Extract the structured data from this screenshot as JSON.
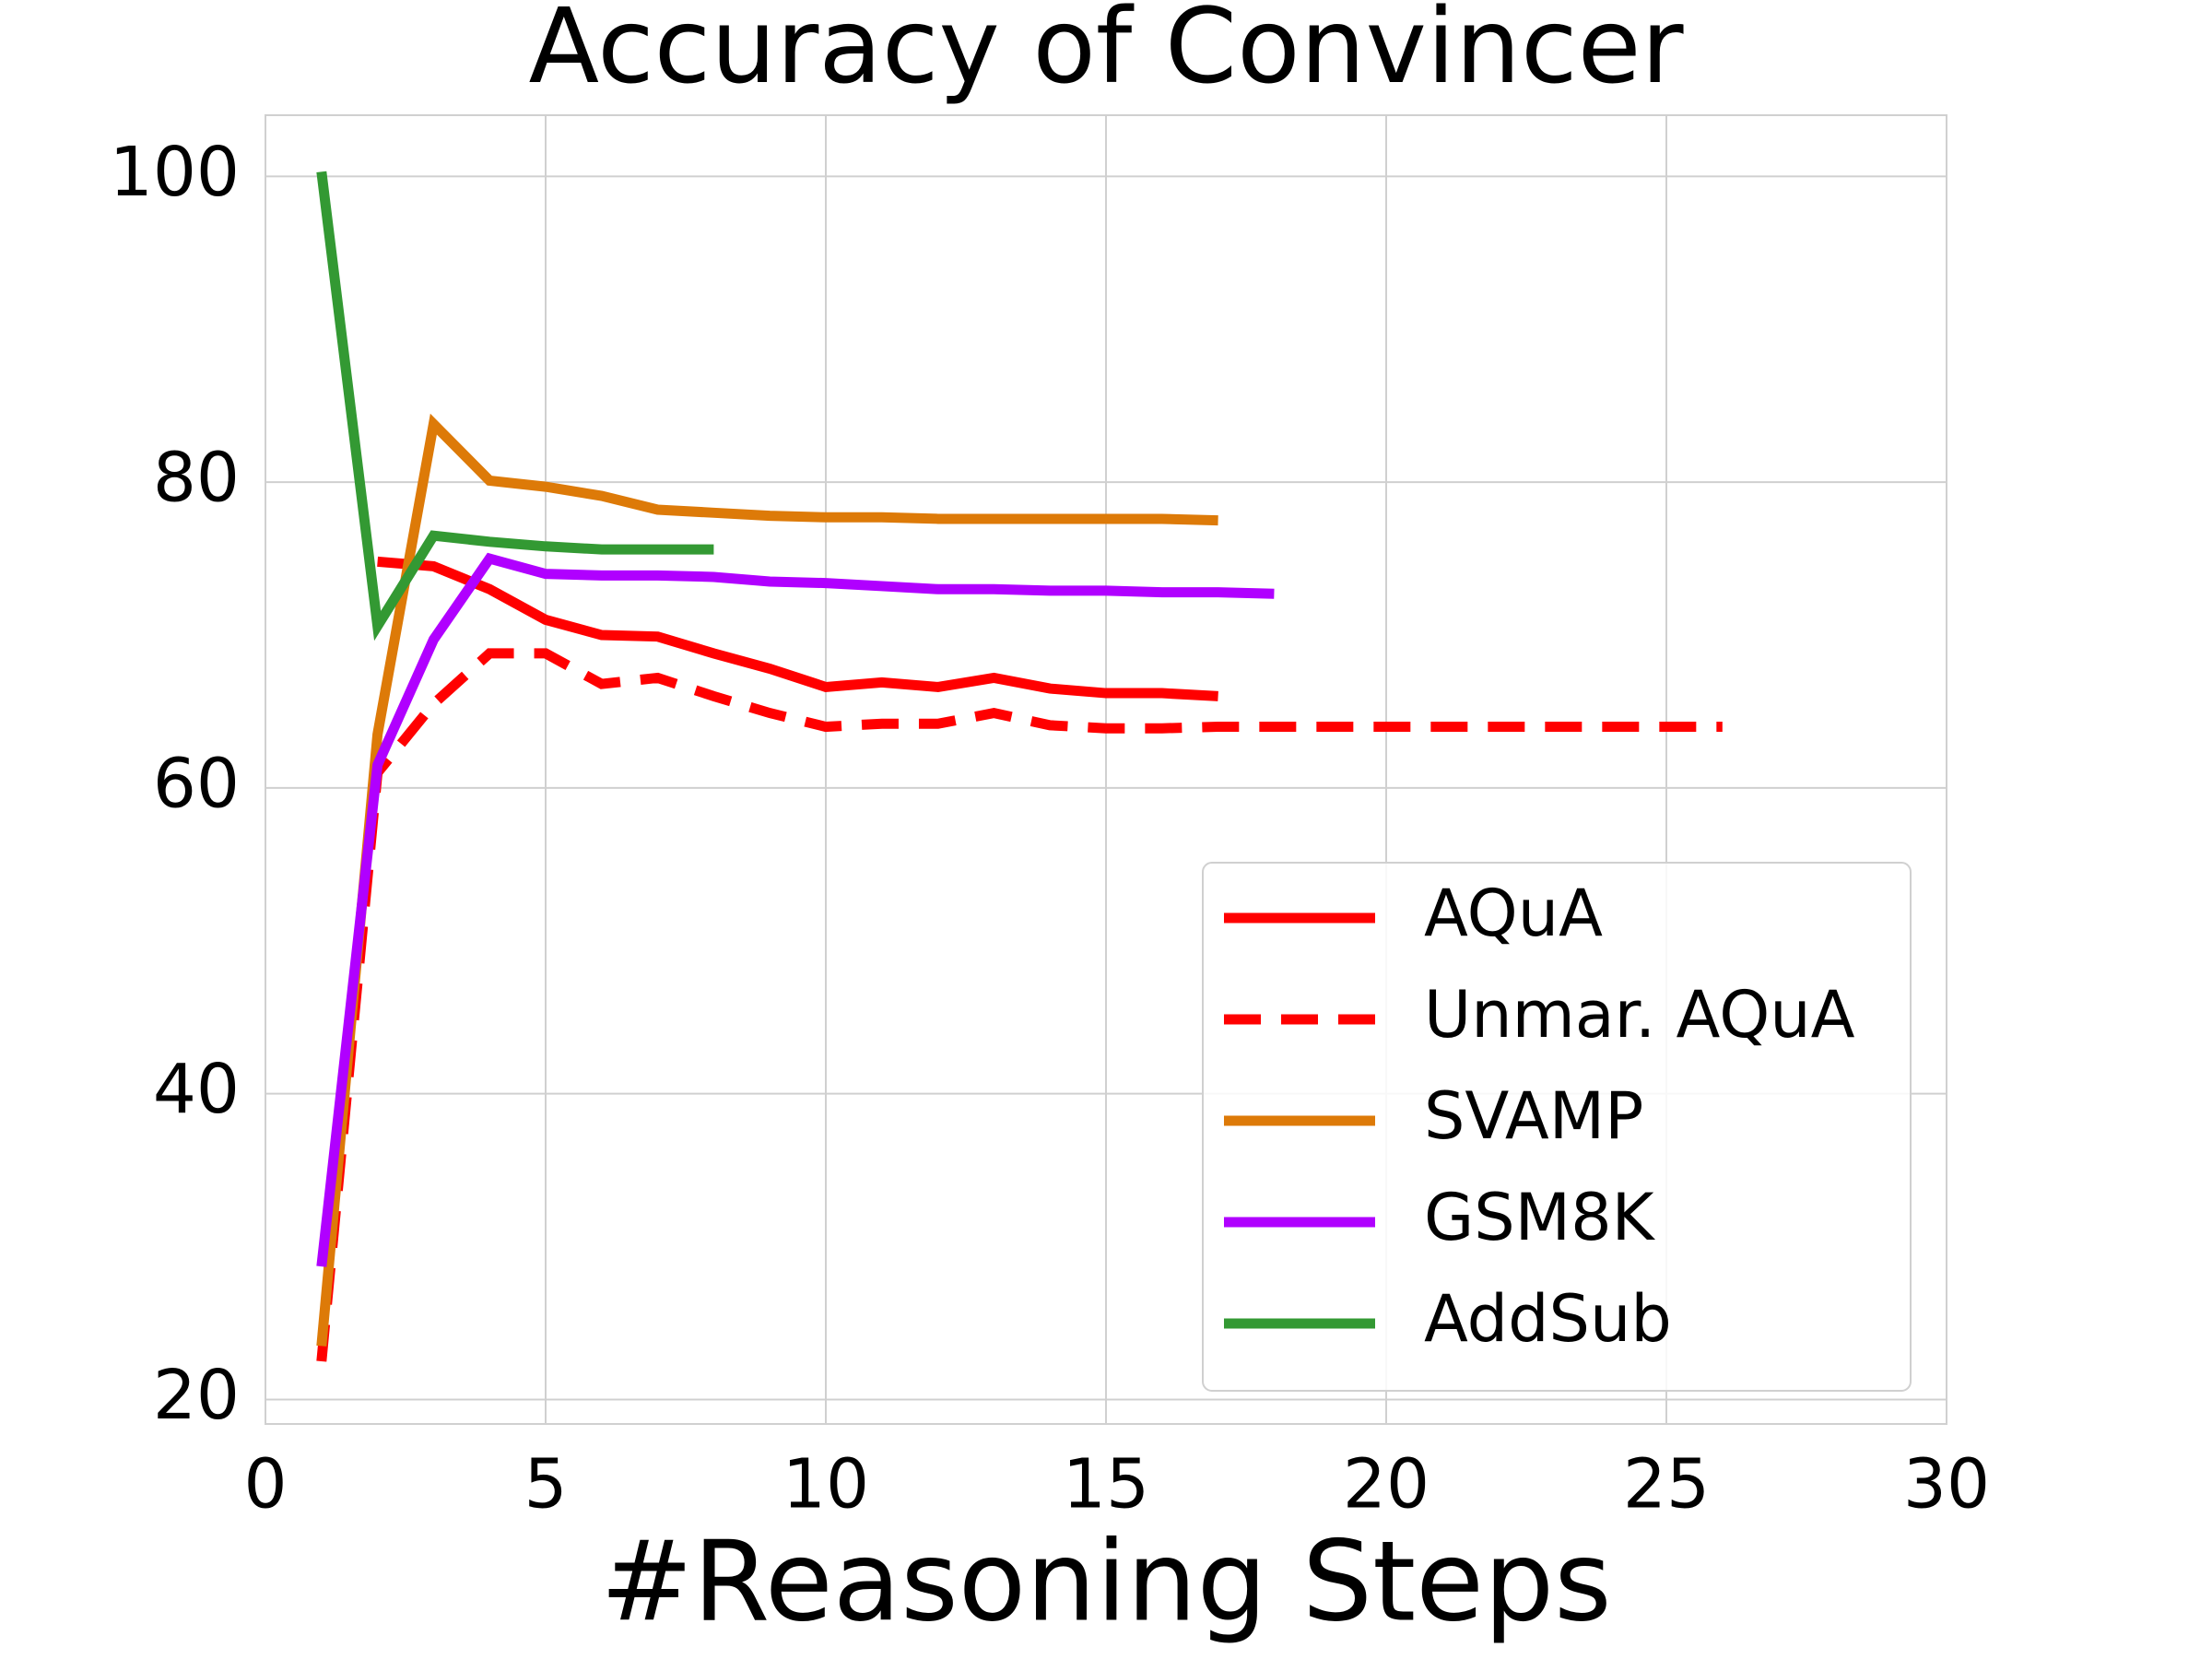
{
  "chart_data": {
    "type": "line",
    "title": "Accuracy of Convincer",
    "x_label": "#Reasoning Steps",
    "xlim": [
      0,
      30
    ],
    "ylim": [
      18.4,
      104
    ],
    "xticks": [
      0,
      5,
      10,
      15,
      20,
      25,
      30
    ],
    "yticks": [
      20,
      40,
      60,
      80,
      100
    ],
    "grid": true,
    "legend": "lower right",
    "series": [
      {
        "name": "AQuA",
        "color": "#ff0000",
        "style": "solid",
        "x": [
          2,
          3,
          4,
          5,
          6,
          7,
          8,
          9,
          10,
          11,
          12,
          13,
          14,
          15,
          16,
          17
        ],
        "values": [
          74.8,
          74.5,
          73,
          71,
          70,
          69.9,
          68.8,
          67.8,
          66.6,
          66.9,
          66.6,
          67.2,
          66.5,
          66.2,
          66.2,
          66.0
        ]
      },
      {
        "name": "Unmar. AQuA",
        "color": "#ff0000",
        "style": "dashed",
        "x": [
          1,
          2,
          3,
          4,
          5,
          6,
          7,
          8,
          9,
          10,
          11,
          12,
          13,
          14,
          15,
          16,
          17,
          18,
          19,
          20,
          21,
          22,
          23,
          24,
          25,
          26
        ],
        "values": [
          22.5,
          61,
          65.5,
          68.8,
          68.8,
          66.8,
          67.2,
          66.0,
          64.9,
          64.0,
          64.2,
          64.2,
          64.9,
          64.1,
          63.9,
          63.9,
          64.0,
          64.0,
          64.0,
          64.0,
          64.0,
          64.0,
          64.0,
          64.0,
          64.0,
          64.0
        ]
      },
      {
        "name": "SVAMP",
        "color": "#dd7a08",
        "style": "solid",
        "x": [
          1,
          2,
          3,
          4,
          5,
          6,
          7,
          8,
          9,
          10,
          11,
          12,
          13,
          14,
          15,
          16,
          17
        ],
        "values": [
          23.5,
          63.5,
          83.8,
          80.1,
          79.7,
          79.1,
          78.2,
          78.0,
          77.8,
          77.7,
          77.7,
          77.6,
          77.6,
          77.6,
          77.6,
          77.6,
          77.5
        ]
      },
      {
        "name": "GSM8K",
        "color": "#b000ff",
        "style": "solid",
        "x": [
          1,
          2,
          3,
          4,
          5,
          6,
          7,
          8,
          9,
          10,
          11,
          12,
          13,
          14,
          15,
          16,
          17,
          18
        ],
        "values": [
          28.7,
          61.5,
          69.7,
          75.0,
          74.0,
          73.9,
          73.9,
          73.8,
          73.5,
          73.4,
          73.2,
          73.0,
          73.0,
          72.9,
          72.9,
          72.8,
          72.8,
          72.7
        ]
      },
      {
        "name": "AddSub",
        "color": "#339933",
        "style": "solid",
        "x": [
          1,
          2,
          3,
          4,
          5,
          6,
          7,
          8
        ],
        "values": [
          100.3,
          70.6,
          76.5,
          76.1,
          75.8,
          75.6,
          75.6,
          75.6
        ]
      }
    ]
  }
}
